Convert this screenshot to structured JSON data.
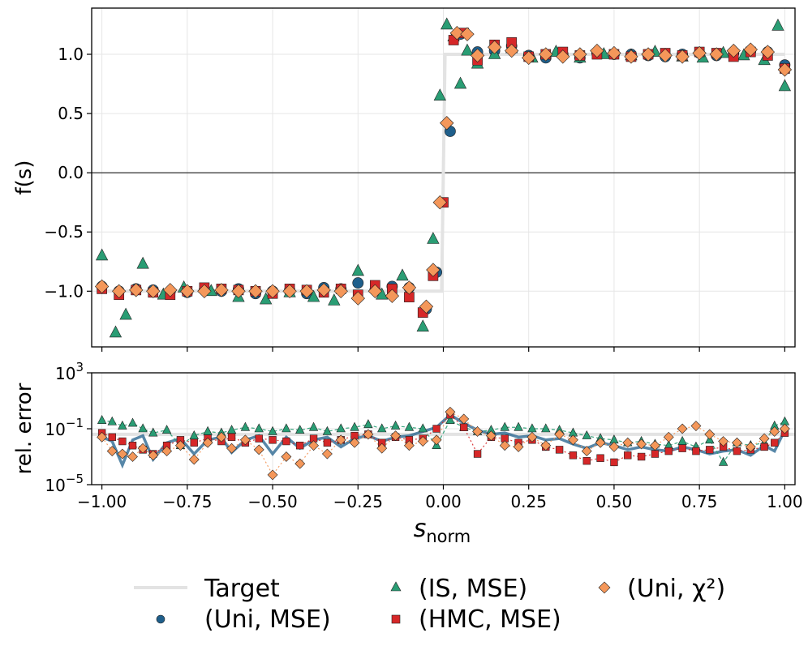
{
  "chart_data": [
    {
      "panel": "top",
      "type": "scatter",
      "ylabel": "f(s)",
      "ylim": [
        -1.47,
        1.39
      ],
      "xlim": [
        -1.03,
        1.03
      ],
      "yticks": [
        1.0,
        0.5,
        0.0,
        -0.5,
        -1.0
      ],
      "ytick_labels": [
        "1.0",
        "0.5",
        "0.0",
        "−0.5",
        "−1.0"
      ],
      "grid": true,
      "zero_line": 0.0,
      "target": {
        "name": "Target",
        "x": [
          -1.0,
          -0.005,
          0.005,
          1.0
        ],
        "y": [
          -1.0,
          -1.0,
          1.0,
          1.0
        ]
      },
      "series": [
        {
          "name": "(Uni, MSE)",
          "marker": "circle",
          "color": "#1f5f8b",
          "x": [
            -1.0,
            -0.95,
            -0.9,
            -0.85,
            -0.8,
            -0.75,
            -0.7,
            -0.65,
            -0.6,
            -0.55,
            -0.5,
            -0.45,
            -0.4,
            -0.35,
            -0.3,
            -0.25,
            -0.2,
            -0.15,
            -0.1,
            -0.05,
            -0.02,
            0.02,
            0.05,
            0.1,
            0.15,
            0.2,
            0.25,
            0.3,
            0.35,
            0.4,
            0.45,
            0.5,
            0.55,
            0.6,
            0.65,
            0.7,
            0.75,
            0.8,
            0.85,
            0.9,
            0.95,
            1.0
          ],
          "y": [
            -0.96,
            -1.0,
            -0.98,
            -0.99,
            -1.0,
            -1.01,
            -0.99,
            -1.0,
            -0.98,
            -1.02,
            -1.0,
            -0.99,
            -1.02,
            -0.97,
            -0.98,
            -0.93,
            -0.99,
            -0.96,
            -0.97,
            -1.15,
            -0.84,
            0.35,
            1.17,
            1.02,
            1.03,
            1.07,
            0.99,
            0.97,
            1.0,
            0.97,
            1.01,
            1.0,
            1.0,
            0.99,
            0.98,
            1.0,
            1.01,
            0.99,
            1.01,
            1.03,
            1.02,
            0.91
          ]
        },
        {
          "name": "(IS, MSE)",
          "marker": "triangle",
          "color": "#2a9d74",
          "x": [
            -1.0,
            -0.96,
            -0.93,
            -0.88,
            -0.82,
            -0.76,
            -0.68,
            -0.6,
            -0.52,
            -0.45,
            -0.38,
            -0.32,
            -0.25,
            -0.18,
            -0.12,
            -0.06,
            -0.03,
            -0.01,
            0.01,
            0.03,
            0.05,
            0.07,
            0.1,
            0.15,
            0.2,
            0.26,
            0.33,
            0.4,
            0.47,
            0.55,
            0.62,
            0.7,
            0.76,
            0.82,
            0.88,
            0.94,
            0.98,
            1.0
          ],
          "y": [
            -0.7,
            -1.35,
            -1.2,
            -0.77,
            -1.03,
            -0.97,
            -1.0,
            -1.05,
            -1.07,
            -1.01,
            -1.05,
            -1.08,
            -0.83,
            -1.03,
            -0.87,
            -1.3,
            -0.56,
            0.65,
            1.25,
            1.15,
            0.75,
            1.03,
            0.92,
            1.0,
            1.05,
            0.97,
            1.02,
            0.97,
            1.0,
            0.99,
            1.02,
            0.98,
            0.97,
            1.01,
            0.99,
            0.95,
            1.24,
            0.73
          ]
        },
        {
          "name": "(HMC, MSE)",
          "marker": "square",
          "color": "#d62728",
          "x": [
            -1.0,
            -0.95,
            -0.9,
            -0.85,
            -0.8,
            -0.75,
            -0.7,
            -0.65,
            -0.6,
            -0.55,
            -0.5,
            -0.45,
            -0.4,
            -0.35,
            -0.3,
            -0.25,
            -0.2,
            -0.15,
            -0.1,
            -0.06,
            -0.03,
            0.0,
            0.03,
            0.06,
            0.1,
            0.15,
            0.2,
            0.25,
            0.3,
            0.35,
            0.4,
            0.45,
            0.5,
            0.55,
            0.6,
            0.65,
            0.7,
            0.75,
            0.8,
            0.85,
            0.9,
            0.95,
            1.0
          ],
          "y": [
            -0.98,
            -1.03,
            -0.99,
            -1.01,
            -1.03,
            -1.0,
            -0.97,
            -0.98,
            -0.99,
            -1.0,
            -1.02,
            -0.98,
            -0.99,
            -1.01,
            -0.98,
            -1.03,
            -0.95,
            -0.98,
            -1.05,
            -1.18,
            -0.87,
            -0.25,
            1.12,
            1.18,
            0.95,
            1.08,
            1.1,
            0.98,
            1.0,
            1.02,
            0.99,
            1.0,
            1.0,
            0.98,
            1.0,
            1.01,
            0.99,
            1.02,
            1.01,
            0.98,
            1.02,
            0.99,
            0.88
          ]
        },
        {
          "name": "(Uni, χ²)",
          "marker": "diamond",
          "color": "#f4975a",
          "x": [
            -1.0,
            -0.95,
            -0.9,
            -0.85,
            -0.8,
            -0.75,
            -0.7,
            -0.65,
            -0.6,
            -0.55,
            -0.5,
            -0.45,
            -0.4,
            -0.35,
            -0.3,
            -0.25,
            -0.2,
            -0.15,
            -0.1,
            -0.05,
            -0.03,
            -0.01,
            0.01,
            0.04,
            0.07,
            0.1,
            0.15,
            0.2,
            0.25,
            0.3,
            0.35,
            0.4,
            0.45,
            0.5,
            0.55,
            0.6,
            0.65,
            0.7,
            0.75,
            0.8,
            0.85,
            0.9,
            0.95,
            1.0
          ],
          "y": [
            -0.96,
            -1.0,
            -0.99,
            -1.0,
            -0.99,
            -1.0,
            -1.0,
            -0.99,
            -1.0,
            -1.0,
            -1.0,
            -1.0,
            -1.0,
            -0.99,
            -1.0,
            -1.06,
            -1.0,
            -1.04,
            -0.97,
            -1.13,
            -0.82,
            -0.25,
            0.42,
            1.18,
            1.17,
            0.99,
            1.06,
            1.03,
            0.97,
            1.0,
            0.98,
            1.0,
            1.03,
            1.01,
            0.98,
            1.0,
            0.99,
            0.98,
            1.01,
            1.0,
            1.03,
            1.04,
            1.02,
            0.87
          ]
        }
      ]
    },
    {
      "panel": "bottom",
      "type": "line",
      "ylabel": "rel. error",
      "yscale": "log",
      "ylim_exp": [
        -5,
        3
      ],
      "yticks_exp": [
        3,
        -1,
        -5
      ],
      "ytick_base": "10",
      "xlabel": "s",
      "xlabel_sub": "norm",
      "xticks": [
        -1.0,
        -0.75,
        -0.5,
        -0.25,
        0.0,
        0.25,
        0.5,
        0.75,
        1.0
      ],
      "xtick_labels": [
        "−1.00",
        "−0.75",
        "−0.50",
        "−0.25",
        "0.00",
        "0.25",
        "0.50",
        "0.75",
        "1.00"
      ],
      "grid": true,
      "target": {
        "name": "Target",
        "log10_y": -1.4
      },
      "series": [
        {
          "name": "(Uni, MSE)",
          "marker": "circle",
          "x": [
            -1.0,
            -0.97,
            -0.94,
            -0.91,
            -0.88,
            -0.85,
            -0.81,
            -0.77,
            -0.73,
            -0.69,
            -0.65,
            -0.62,
            -0.58,
            -0.54,
            -0.5,
            -0.46,
            -0.42,
            -0.38,
            -0.34,
            -0.3,
            -0.26,
            -0.22,
            -0.18,
            -0.14,
            -0.1,
            -0.06,
            -0.02,
            0.02,
            0.06,
            0.1,
            0.14,
            0.18,
            0.22,
            0.26,
            0.3,
            0.34,
            0.38,
            0.42,
            0.46,
            0.5,
            0.54,
            0.58,
            0.62,
            0.66,
            0.7,
            0.74,
            0.78,
            0.82,
            0.86,
            0.9,
            0.94,
            0.97,
            1.0
          ],
          "log10_y": [
            -1.6,
            -1.9,
            -3.6,
            -1.8,
            -1.5,
            -3.2,
            -2.0,
            -1.7,
            -2.8,
            -1.8,
            -1.6,
            -2.7,
            -1.8,
            -1.5,
            -2.8,
            -1.6,
            -2.4,
            -1.8,
            -1.6,
            -2.3,
            -1.7,
            -1.5,
            -1.9,
            -1.6,
            -1.5,
            -1.2,
            -0.9,
            0.0,
            -0.6,
            -1.1,
            -1.4,
            -1.3,
            -1.6,
            -1.5,
            -1.8,
            -1.7,
            -2.1,
            -2.4,
            -2.0,
            -2.2,
            -2.5,
            -2.3,
            -2.5,
            -2.6,
            -2.3,
            -2.5,
            -2.8,
            -2.6,
            -2.5,
            -2.9,
            -2.2,
            -2.6,
            -1.1
          ]
        },
        {
          "name": "(IS, MSE)",
          "marker": "triangle",
          "x": [
            -1.0,
            -0.97,
            -0.94,
            -0.91,
            -0.88,
            -0.85,
            -0.81,
            -0.77,
            -0.73,
            -0.69,
            -0.65,
            -0.62,
            -0.58,
            -0.54,
            -0.5,
            -0.46,
            -0.42,
            -0.38,
            -0.34,
            -0.3,
            -0.26,
            -0.22,
            -0.18,
            -0.14,
            -0.1,
            -0.06,
            -0.02,
            0.02,
            0.06,
            0.1,
            0.14,
            0.18,
            0.22,
            0.26,
            0.3,
            0.34,
            0.38,
            0.42,
            0.46,
            0.5,
            0.54,
            0.58,
            0.62,
            0.66,
            0.7,
            0.74,
            0.78,
            0.82,
            0.86,
            0.9,
            0.94,
            0.97,
            1.0
          ],
          "log10_y": [
            -0.4,
            -0.5,
            -0.8,
            -0.6,
            -1.0,
            -1.3,
            -1.1,
            -2.2,
            -1.5,
            -1.2,
            -1.3,
            -1.1,
            -0.9,
            -1.0,
            -1.2,
            -1.0,
            -1.1,
            -0.9,
            -1.2,
            -1.0,
            -0.9,
            -0.7,
            -1.0,
            -0.8,
            -0.9,
            -1.0,
            -2.2,
            -0.4,
            -0.9,
            -1.2,
            -1.1,
            -0.9,
            -0.9,
            -1.0,
            -1.0,
            -1.1,
            -1.3,
            -1.5,
            -1.7,
            -1.8,
            -2.0,
            -1.9,
            -2.1,
            -2.2,
            -1.9,
            -2.3,
            -1.8,
            -3.4,
            -2.0,
            -2.2,
            -2.0,
            -0.8,
            -0.5
          ]
        },
        {
          "name": "(HMC, MSE)",
          "marker": "square",
          "x": [
            -1.0,
            -0.97,
            -0.94,
            -0.91,
            -0.88,
            -0.85,
            -0.81,
            -0.77,
            -0.73,
            -0.69,
            -0.65,
            -0.62,
            -0.58,
            -0.54,
            -0.5,
            -0.46,
            -0.42,
            -0.38,
            -0.34,
            -0.3,
            -0.26,
            -0.22,
            -0.18,
            -0.14,
            -0.1,
            -0.06,
            -0.02,
            0.02,
            0.06,
            0.1,
            0.14,
            0.18,
            0.22,
            0.26,
            0.3,
            0.34,
            0.38,
            0.42,
            0.46,
            0.5,
            0.54,
            0.58,
            0.62,
            0.66,
            0.7,
            0.74,
            0.78,
            0.82,
            0.86,
            0.9,
            0.94,
            0.97,
            1.0
          ],
          "log10_y": [
            -1.3,
            -1.6,
            -1.9,
            -2.2,
            -2.5,
            -2.8,
            -2.2,
            -1.8,
            -2.0,
            -1.7,
            -1.9,
            -1.6,
            -2.0,
            -1.7,
            -1.8,
            -1.9,
            -2.2,
            -1.7,
            -2.0,
            -1.8,
            -1.5,
            -1.4,
            -2.0,
            -1.6,
            -1.8,
            -1.7,
            -1.0,
            0.0,
            -0.9,
            -2.8,
            -1.6,
            -1.7,
            -2.0,
            -1.8,
            -2.3,
            -2.5,
            -2.9,
            -3.3,
            -3.1,
            -3.4,
            -2.9,
            -3.0,
            -2.8,
            -2.6,
            -2.4,
            -2.6,
            -2.5,
            -2.3,
            -2.6,
            -2.5,
            -2.3,
            -2.0,
            -1.3
          ]
        },
        {
          "name": "(Uni, χ²)",
          "marker": "diamond",
          "x": [
            -1.0,
            -0.97,
            -0.94,
            -0.91,
            -0.88,
            -0.85,
            -0.81,
            -0.77,
            -0.73,
            -0.69,
            -0.65,
            -0.62,
            -0.58,
            -0.54,
            -0.5,
            -0.46,
            -0.42,
            -0.38,
            -0.34,
            -0.3,
            -0.26,
            -0.22,
            -0.18,
            -0.14,
            -0.1,
            -0.06,
            -0.02,
            0.02,
            0.06,
            0.1,
            0.14,
            0.18,
            0.22,
            0.26,
            0.3,
            0.34,
            0.38,
            0.42,
            0.46,
            0.5,
            0.54,
            0.58,
            0.62,
            0.66,
            0.7,
            0.74,
            0.78,
            0.82,
            0.86,
            0.9,
            0.94,
            0.97,
            1.0
          ],
          "log10_y": [
            -1.6,
            -2.6,
            -2.8,
            -3.0,
            -2.4,
            -2.9,
            -2.6,
            -2.2,
            -3.2,
            -2.0,
            -1.6,
            -2.4,
            -1.8,
            -2.5,
            -4.3,
            -3.0,
            -3.5,
            -2.2,
            -2.8,
            -1.8,
            -2.0,
            -1.4,
            -2.4,
            -1.5,
            -2.2,
            -1.9,
            -1.8,
            0.2,
            -0.3,
            -1.2,
            -1.5,
            -2.2,
            -2.3,
            -1.6,
            -2.2,
            -1.4,
            -1.8,
            -2.6,
            -2.0,
            -2.3,
            -2.0,
            -2.1,
            -2.2,
            -1.6,
            -1.0,
            -0.8,
            -1.4,
            -1.9,
            -2.0,
            -2.3,
            -1.7,
            -1.2,
            -1.0
          ]
        }
      ]
    }
  ],
  "legend": {
    "items": [
      {
        "key": "target",
        "label": "Target"
      },
      {
        "key": "uni_mse",
        "label": "(Uni, MSE)"
      },
      {
        "key": "is_mse",
        "label": "(IS, MSE)"
      },
      {
        "key": "hmc_mse",
        "label": "(HMC, MSE)"
      },
      {
        "key": "uni_chi2",
        "label": "(Uni, χ²)"
      }
    ]
  },
  "colors": {
    "uni_mse": "#1f5f8b",
    "is_mse": "#2a9d74",
    "hmc_mse": "#d62728",
    "uni_chi2": "#f4975a",
    "target": "#e3e3e3",
    "grid": "#e6e6e6"
  }
}
